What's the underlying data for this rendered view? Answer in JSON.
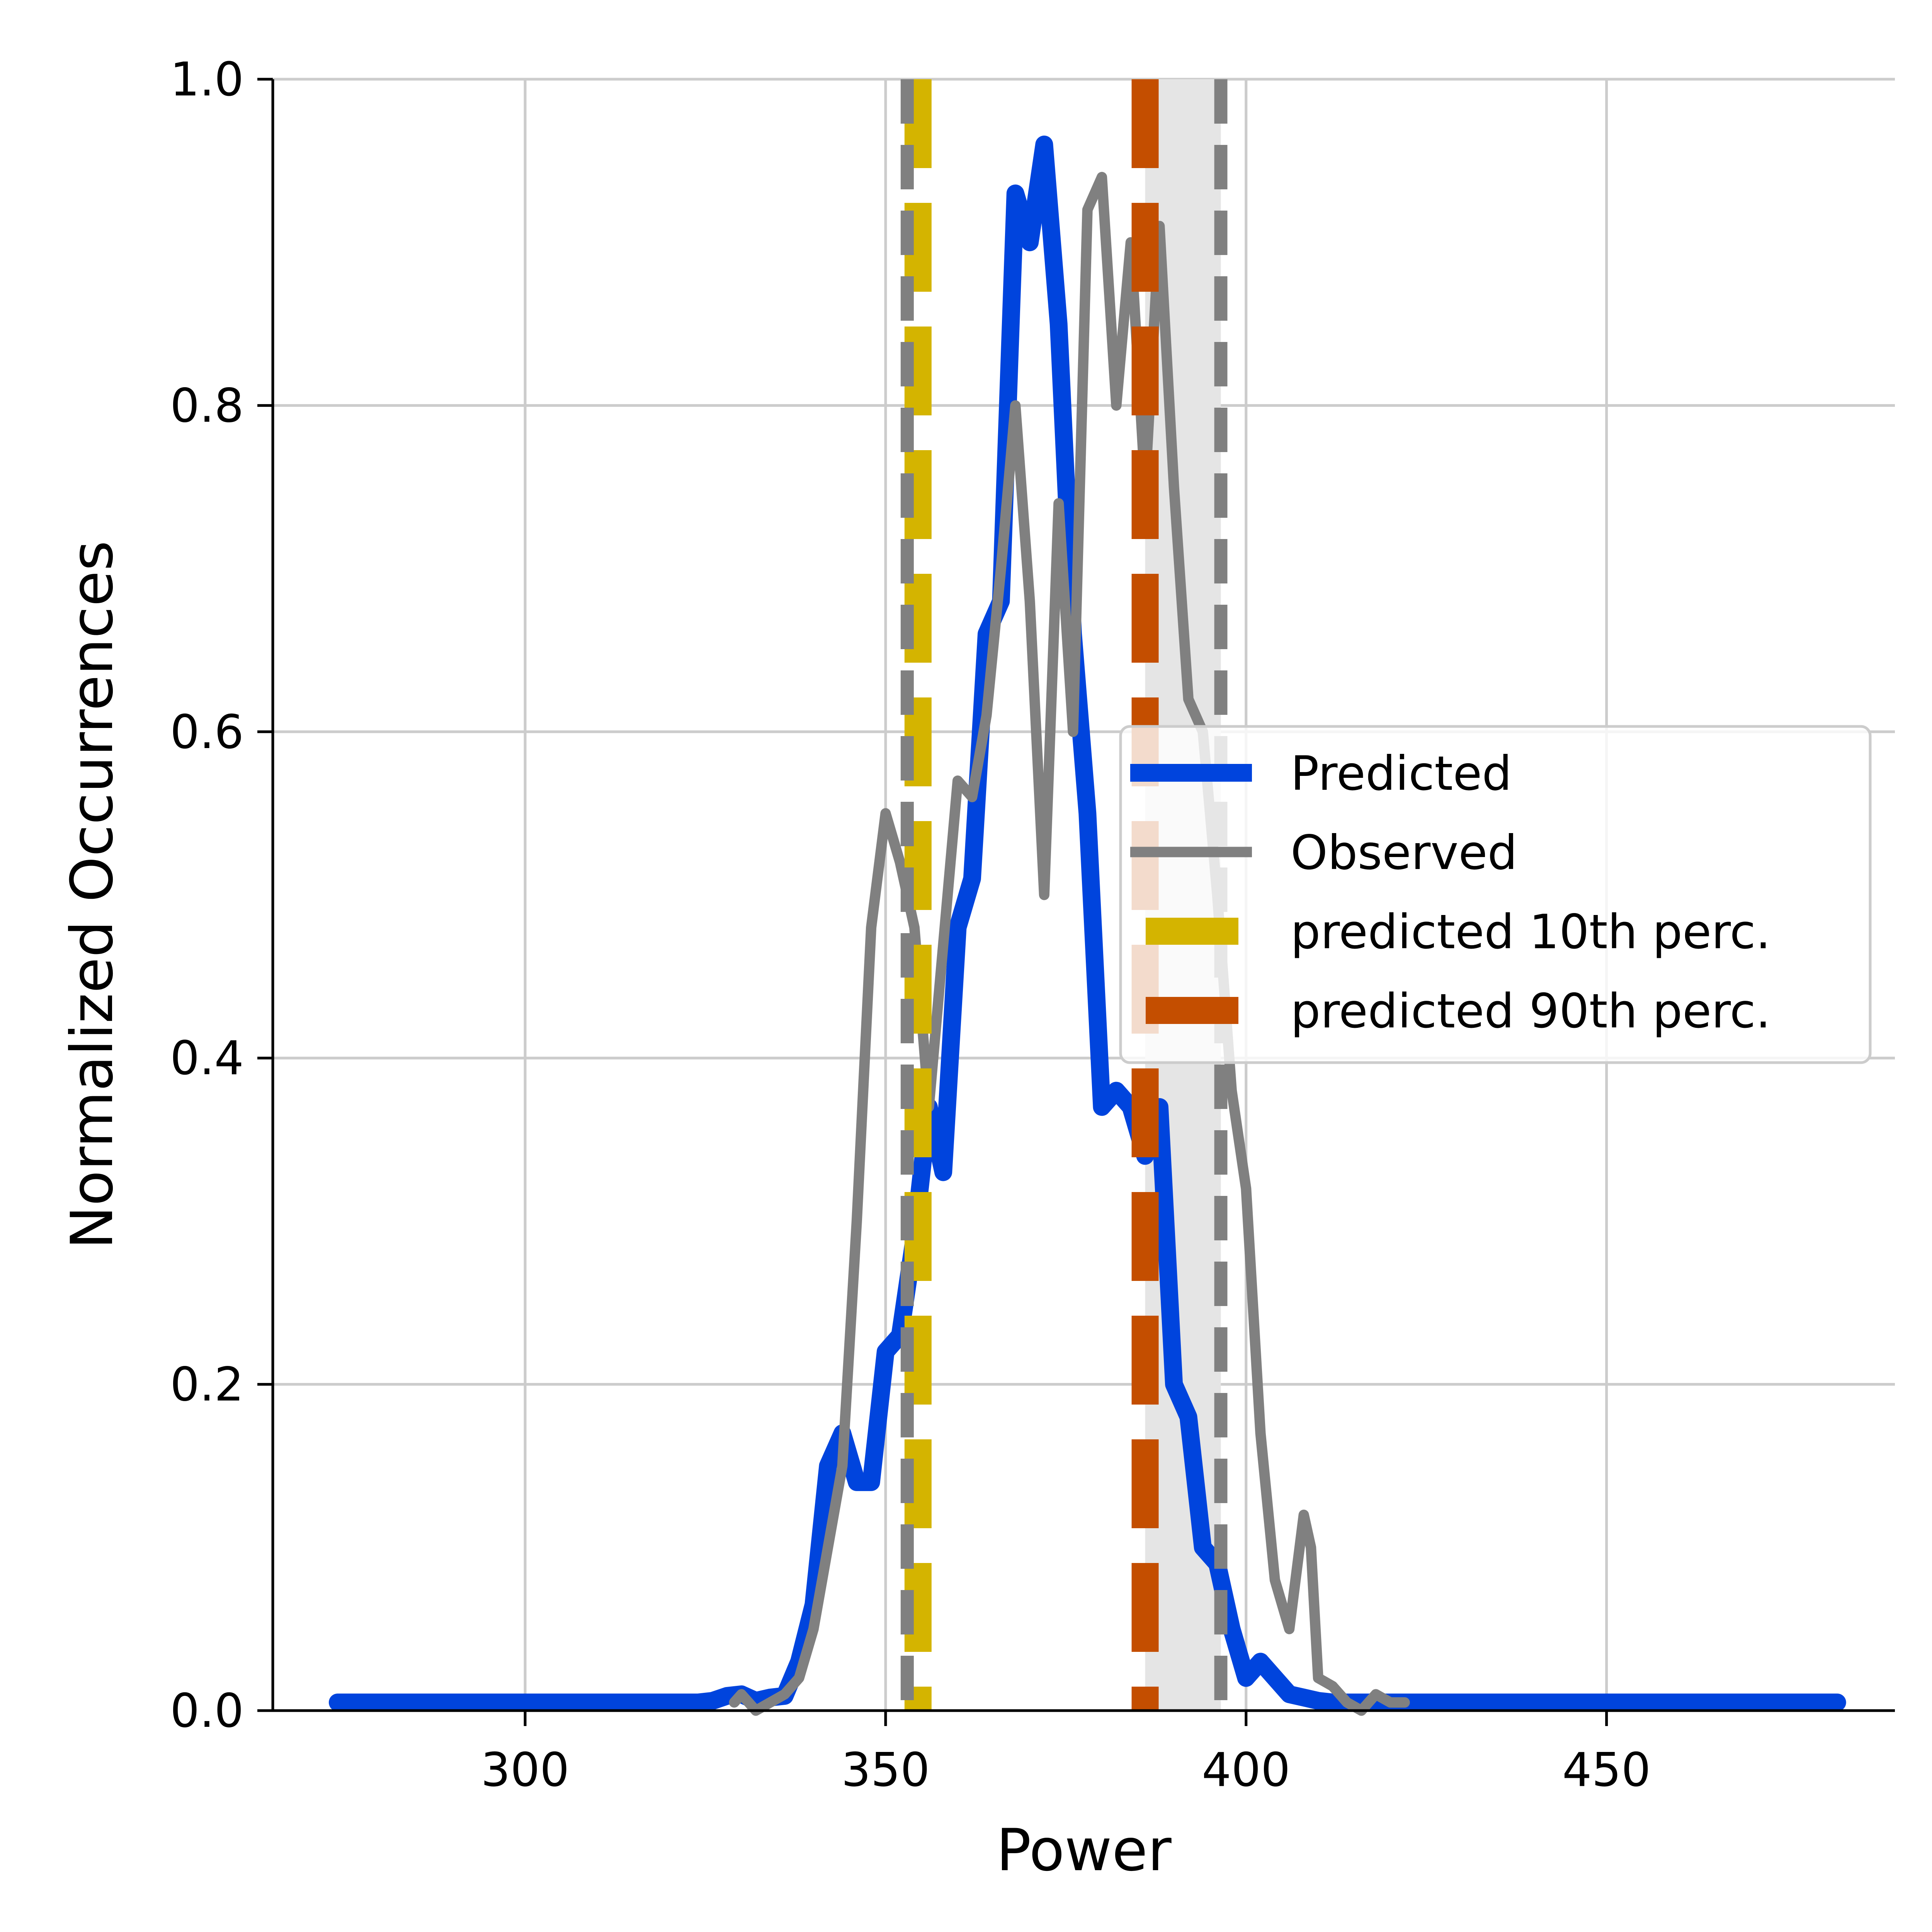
{
  "chart_data": {
    "type": "line",
    "title": "",
    "xlabel": "Power",
    "ylabel": "Normalized Occurrences",
    "xlim": [
      265,
      490
    ],
    "ylim": [
      0.0,
      1.0
    ],
    "x_ticks": [
      300,
      350,
      400,
      450
    ],
    "x_tick_labels": [
      "300",
      "350",
      "400",
      "450"
    ],
    "y_ticks": [
      0.0,
      0.2,
      0.4,
      0.6,
      0.8,
      1.0
    ],
    "y_tick_labels": [
      "0.0",
      "0.2",
      "0.4",
      "0.6",
      "0.8",
      "1.0"
    ],
    "grid": true,
    "legend_position": "center-right",
    "shaded_band": {
      "x": [
        386.0,
        396.5
      ],
      "color": "#e5e5e5"
    },
    "series": [
      {
        "name": "Predicted",
        "color": "#0044dd",
        "style": "solid",
        "x": [
          274,
          324,
          326,
          328,
          330,
          332,
          334,
          336,
          338,
          340,
          342,
          344,
          346,
          348,
          350,
          352,
          354,
          356,
          358,
          360,
          362,
          364,
          366,
          368,
          370,
          372,
          374,
          376,
          378,
          380,
          382,
          384,
          386,
          388,
          390,
          392,
          394,
          396,
          398,
          400,
          402,
          404,
          406,
          408,
          410,
          412,
          414,
          416,
          418,
          420,
          422,
          424,
          426,
          482
        ],
        "y": [
          0.005,
          0.005,
          0.006,
          0.009,
          0.01,
          0.006,
          0.008,
          0.009,
          0.03,
          0.065,
          0.15,
          0.17,
          0.14,
          0.14,
          0.22,
          0.23,
          0.29,
          0.37,
          0.33,
          0.48,
          0.51,
          0.66,
          0.68,
          0.93,
          0.9,
          0.96,
          0.85,
          0.66,
          0.55,
          0.37,
          0.38,
          0.37,
          0.34,
          0.37,
          0.2,
          0.18,
          0.1,
          0.09,
          0.05,
          0.02,
          0.03,
          0.02,
          0.01,
          0.008,
          0.006,
          0.005,
          0.005,
          0.005,
          0.005,
          0.005,
          0.005,
          0.005,
          0.005,
          0.005
        ]
      },
      {
        "name": "Observed",
        "color": "#808080",
        "style": "solid",
        "x": [
          329,
          330,
          332,
          334,
          336,
          338,
          340,
          342,
          344,
          346,
          348,
          350,
          352,
          354,
          356,
          358,
          360,
          362,
          364,
          366,
          368,
          370,
          372,
          374,
          376,
          378,
          380,
          382,
          384,
          386,
          388,
          390,
          392,
          394,
          396,
          398,
          400,
          402,
          404,
          406,
          408,
          409,
          410,
          412,
          414,
          416,
          418,
          420,
          422
        ],
        "y": [
          0.005,
          0.01,
          0.0,
          0.005,
          0.01,
          0.02,
          0.05,
          0.1,
          0.15,
          0.3,
          0.48,
          0.55,
          0.52,
          0.48,
          0.37,
          0.47,
          0.57,
          0.56,
          0.61,
          0.7,
          0.8,
          0.68,
          0.5,
          0.74,
          0.6,
          0.92,
          0.94,
          0.8,
          0.9,
          0.75,
          0.91,
          0.75,
          0.62,
          0.6,
          0.5,
          0.38,
          0.32,
          0.17,
          0.08,
          0.05,
          0.12,
          0.1,
          0.02,
          0.015,
          0.005,
          0.0,
          0.01,
          0.005,
          0.005
        ],
        "_note": "values estimated from gridlines"
      }
    ],
    "vertical_lines": [
      {
        "name": "predicted 10th perc.",
        "x": 354.5,
        "color": "#d4b400",
        "style": "dashed"
      },
      {
        "name": "predicted 90th perc.",
        "x": 386.0,
        "color": "#c44e00",
        "style": "dashed"
      },
      {
        "x": 353.0,
        "color": "#808080",
        "style": "dashed"
      },
      {
        "x": 396.5,
        "color": "#808080",
        "style": "dashed"
      }
    ],
    "legend": {
      "entries": [
        "Predicted",
        "Observed",
        "predicted 10th perc.",
        "predicted 90th perc."
      ]
    }
  }
}
